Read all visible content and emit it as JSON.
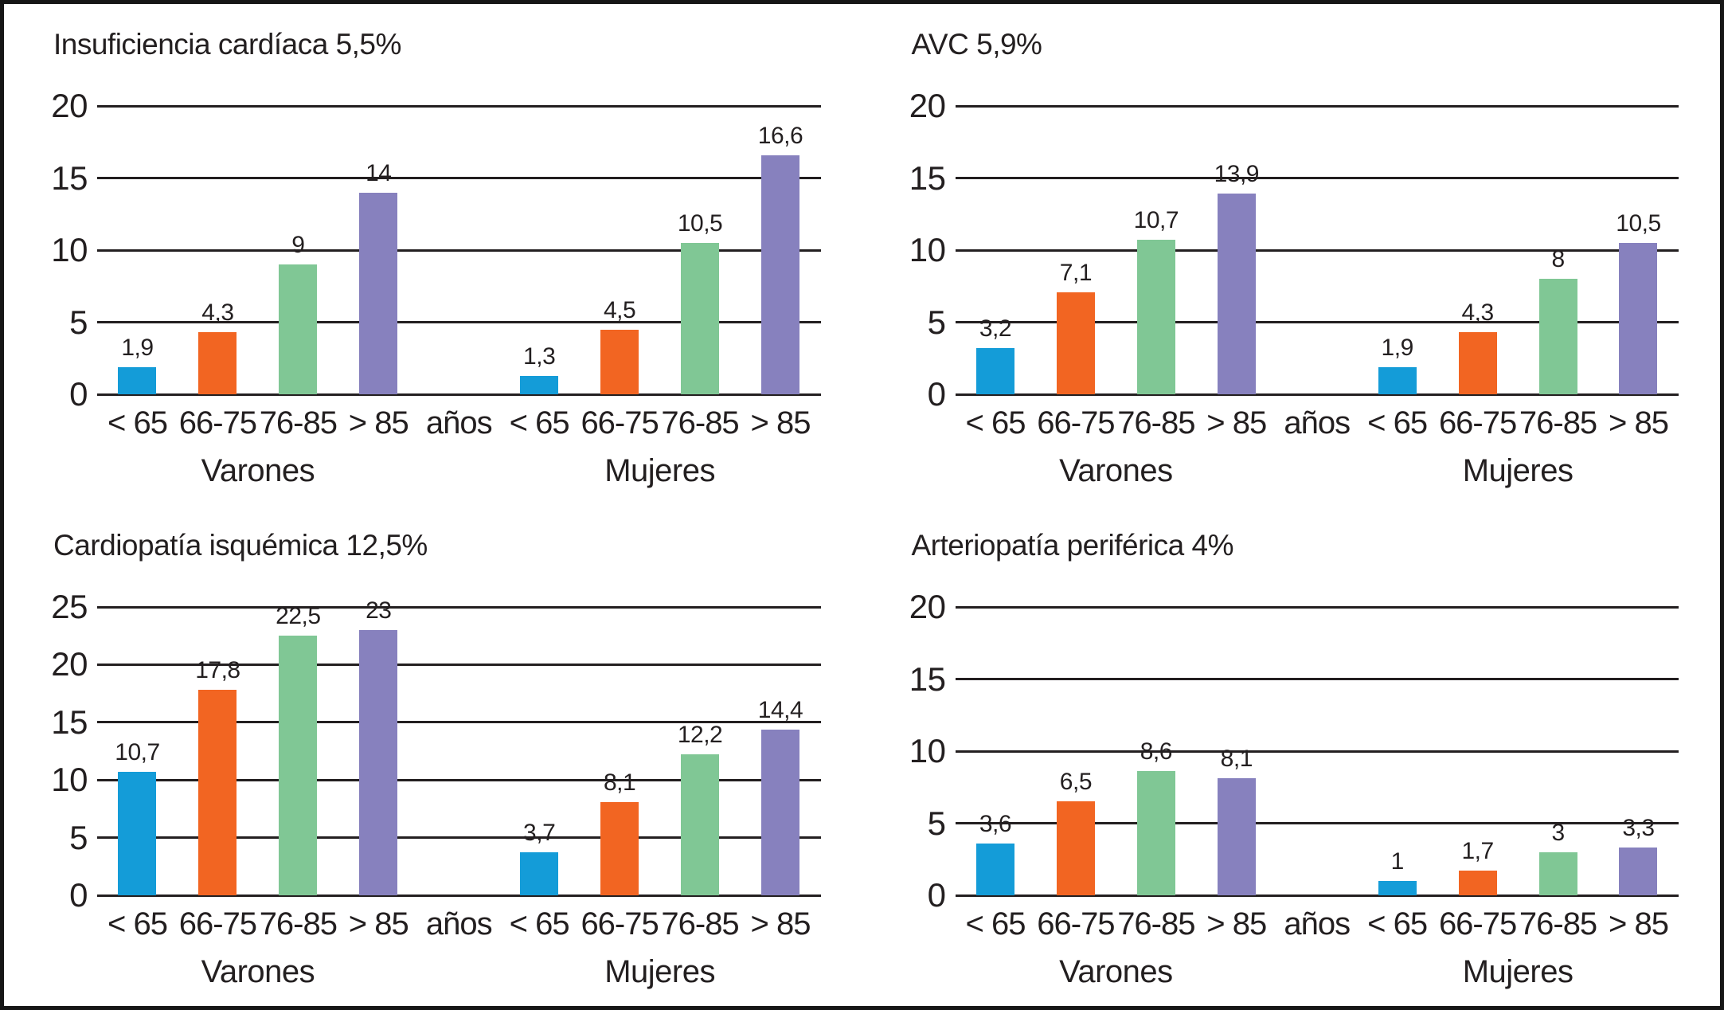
{
  "page": {
    "background": "#ffffff",
    "border_color": "#161616",
    "line_color": "#231f20",
    "text_color": "#231f20"
  },
  "age_group_colors": [
    "#149cd8",
    "#f26522",
    "#80c795",
    "#8781be"
  ],
  "axis": {
    "center_label": "años",
    "group_labels": [
      "Varones",
      "Mujeres"
    ],
    "age_categories": [
      "< 65",
      "66-75",
      "76-85",
      "> 85"
    ]
  },
  "chart_data": [
    {
      "type": "bar",
      "title": "Insuficiencia cardíaca 5,5%",
      "ylim": [
        0,
        20
      ],
      "yticks": [
        20,
        15,
        10,
        5,
        0
      ],
      "grid": "on",
      "legend": "none",
      "categories": [
        "< 65",
        "66-75",
        "76-85",
        "> 85",
        "años",
        "< 65",
        "66-75",
        "76-85",
        "> 85"
      ],
      "series": [
        {
          "name": "Varones",
          "values": [
            1.9,
            4.3,
            9,
            14
          ],
          "value_labels": [
            "1,9",
            "4,3",
            "9",
            "14"
          ]
        },
        {
          "name": "Mujeres",
          "values": [
            1.3,
            4.5,
            10.5,
            16.6
          ],
          "value_labels": [
            "1,3",
            "4,5",
            "10,5",
            "16,6"
          ]
        }
      ]
    },
    {
      "type": "bar",
      "title": "AVC 5,9%",
      "ylim": [
        0,
        20
      ],
      "yticks": [
        20,
        15,
        10,
        5,
        0
      ],
      "grid": "on",
      "legend": "none",
      "categories": [
        "< 65",
        "66-75",
        "76-85",
        "> 85",
        "años",
        "< 65",
        "66-75",
        "76-85",
        "> 85"
      ],
      "series": [
        {
          "name": "Varones",
          "values": [
            3.2,
            7.1,
            10.7,
            13.9
          ],
          "value_labels": [
            "3,2",
            "7,1",
            "10,7",
            "13,9"
          ]
        },
        {
          "name": "Mujeres",
          "values": [
            1.9,
            4.3,
            8,
            10.5
          ],
          "value_labels": [
            "1,9",
            "4,3",
            "8",
            "10,5"
          ]
        }
      ]
    },
    {
      "type": "bar",
      "title": "Cardiopatía isquémica 12,5%",
      "ylim": [
        0,
        25
      ],
      "yticks": [
        25,
        20,
        15,
        10,
        5,
        0
      ],
      "grid": "on",
      "legend": "none",
      "categories": [
        "< 65",
        "66-75",
        "76-85",
        "> 85",
        "años",
        "< 65",
        "66-75",
        "76-85",
        "> 85"
      ],
      "series": [
        {
          "name": "Varones",
          "values": [
            10.7,
            17.8,
            22.5,
            23
          ],
          "value_labels": [
            "10,7",
            "17,8",
            "22,5",
            "23"
          ]
        },
        {
          "name": "Mujeres",
          "values": [
            3.7,
            8.1,
            12.2,
            14.4
          ],
          "value_labels": [
            "3,7",
            "8,1",
            "12,2",
            "14,4"
          ]
        }
      ]
    },
    {
      "type": "bar",
      "title": "Arteriopatía periférica 4%",
      "ylim": [
        0,
        20
      ],
      "yticks": [
        20,
        15,
        10,
        5,
        0
      ],
      "grid": "on",
      "legend": "none",
      "categories": [
        "< 65",
        "66-75",
        "76-85",
        "> 85",
        "años",
        "< 65",
        "66-75",
        "76-85",
        "> 85"
      ],
      "series": [
        {
          "name": "Varones",
          "values": [
            3.6,
            6.5,
            8.6,
            8.1
          ],
          "value_labels": [
            "3,6",
            "6,5",
            "8,6",
            "8,1"
          ]
        },
        {
          "name": "Mujeres",
          "values": [
            1,
            1.7,
            3,
            3.3
          ],
          "value_labels": [
            "1",
            "1,7",
            "3",
            "3,3"
          ]
        }
      ]
    }
  ]
}
